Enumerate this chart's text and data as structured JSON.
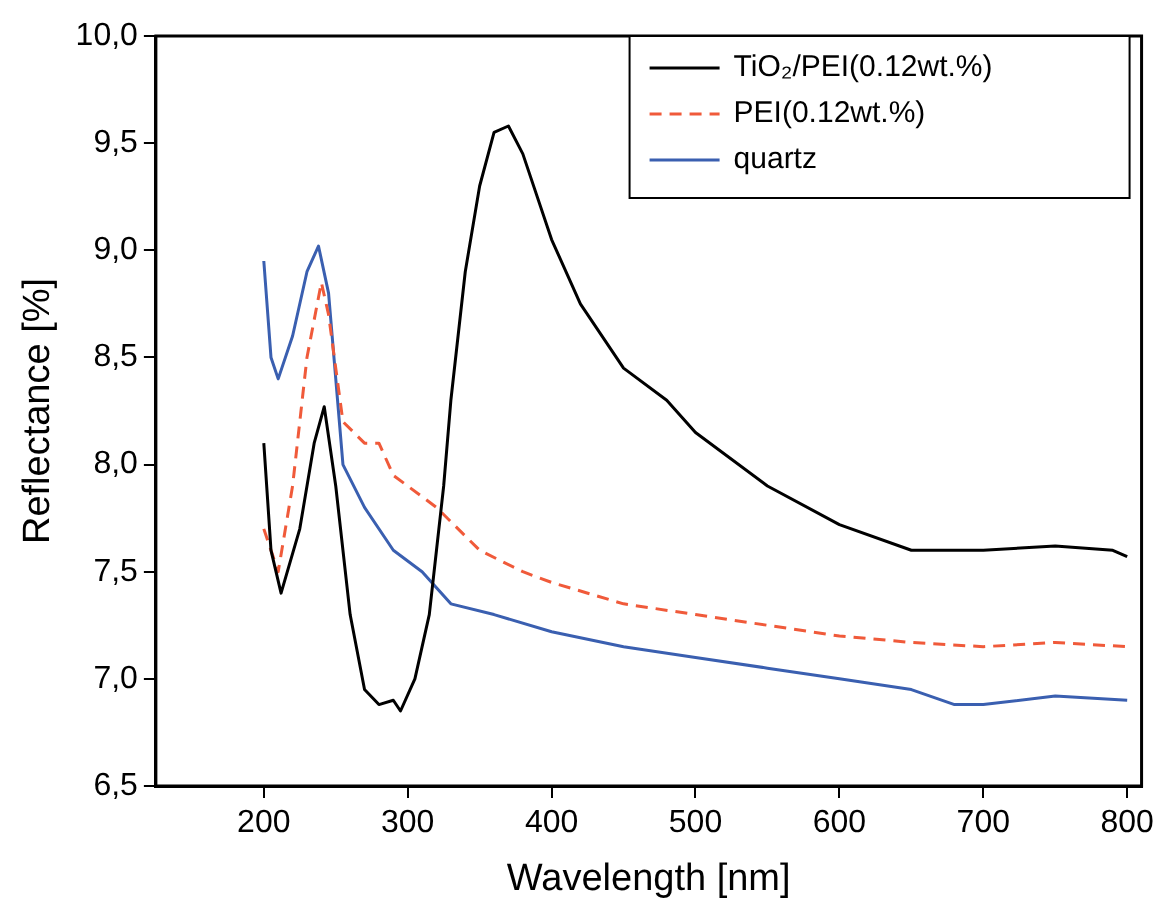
{
  "chart_data": {
    "type": "line",
    "xlabel": "Wavelength [nm]",
    "ylabel": "Reflectance [%]",
    "xlim": [
      125,
      810
    ],
    "ylim": [
      6.5,
      10.0
    ],
    "xticks": [
      200,
      300,
      400,
      500,
      600,
      700,
      800
    ],
    "yticks": [
      {
        "value": 6.5,
        "label": "6,5"
      },
      {
        "value": 7.0,
        "label": "7,0"
      },
      {
        "value": 7.5,
        "label": "7,5"
      },
      {
        "value": 8.0,
        "label": "8,0"
      },
      {
        "value": 8.5,
        "label": "8,5"
      },
      {
        "value": 9.0,
        "label": "9,0"
      },
      {
        "value": 9.5,
        "label": "9,5"
      },
      {
        "value": 10.0,
        "label": "10,0"
      }
    ],
    "grid": false,
    "legend": "top right",
    "marker": "none",
    "series": [
      {
        "name": "TiO₂/PEI(0.12wt.%)",
        "color": "#000000",
        "line_style": "solid",
        "x": [
          200,
          205,
          212,
          225,
          235,
          242,
          250,
          260,
          270,
          280,
          290,
          295,
          305,
          315,
          320,
          325,
          330,
          340,
          350,
          360,
          370,
          380,
          400,
          420,
          450,
          480,
          500,
          550,
          600,
          650,
          700,
          750,
          790,
          800
        ],
        "values": [
          8.1,
          7.6,
          7.4,
          7.7,
          8.1,
          8.27,
          7.9,
          7.3,
          6.95,
          6.88,
          6.9,
          6.85,
          7.0,
          7.3,
          7.6,
          7.9,
          8.3,
          8.9,
          9.3,
          9.55,
          9.58,
          9.45,
          9.05,
          8.75,
          8.45,
          8.3,
          8.15,
          7.9,
          7.72,
          7.6,
          7.6,
          7.62,
          7.6,
          7.57
        ]
      },
      {
        "name": "PEI(0.12wt.%)",
        "color": "#f05a3a",
        "line_style": "dashed",
        "x": [
          200,
          210,
          220,
          230,
          240,
          245,
          255,
          270,
          280,
          290,
          300,
          320,
          350,
          380,
          400,
          450,
          500,
          550,
          600,
          650,
          700,
          750,
          800
        ],
        "values": [
          7.7,
          7.5,
          7.9,
          8.5,
          8.85,
          8.7,
          8.2,
          8.1,
          8.1,
          7.95,
          7.9,
          7.8,
          7.6,
          7.5,
          7.45,
          7.35,
          7.3,
          7.25,
          7.2,
          7.17,
          7.15,
          7.17,
          7.15
        ]
      },
      {
        "name": "quartz",
        "color": "#3a5fb0",
        "line_style": "solid",
        "x": [
          200,
          205,
          210,
          220,
          230,
          238,
          245,
          255,
          270,
          290,
          310,
          330,
          360,
          400,
          450,
          500,
          550,
          600,
          650,
          680,
          700,
          750,
          800
        ],
        "values": [
          8.95,
          8.5,
          8.4,
          8.6,
          8.9,
          9.02,
          8.8,
          8.0,
          7.8,
          7.6,
          7.5,
          7.35,
          7.3,
          7.22,
          7.15,
          7.1,
          7.05,
          7.0,
          6.95,
          6.88,
          6.88,
          6.92,
          6.9
        ]
      }
    ]
  }
}
